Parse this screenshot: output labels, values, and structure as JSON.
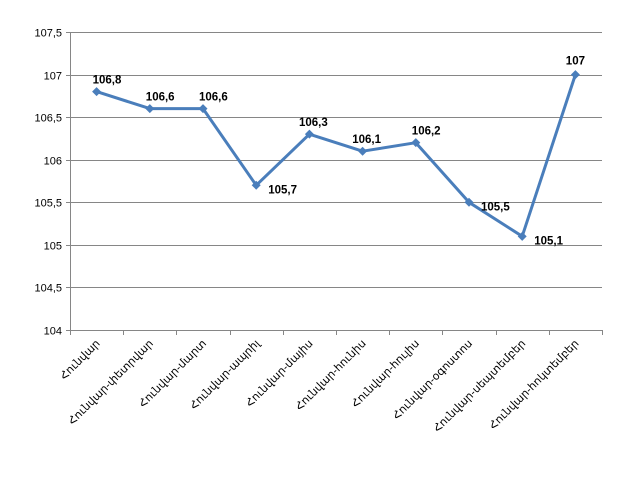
{
  "chart_data": {
    "type": "line",
    "title": "",
    "xlabel": "",
    "ylabel": "",
    "categories": [
      "Հունվար",
      "Հունվար-փետրվար",
      "Հունվար-մարտ",
      "Հունվար-ապրիլ",
      "Հունվար-մայիս",
      "Հունվար-հունիս",
      "Հունվար-հուլիս",
      "Հունվար-օգոստոս",
      "Հունվար-սեպտեմբեր",
      "Հունվար-հոկտեմբեր"
    ],
    "values": [
      106.8,
      106.6,
      106.6,
      105.7,
      106.3,
      106.1,
      106.2,
      105.5,
      105.1,
      107
    ],
    "data_labels": [
      "106,8",
      "106,6",
      "106,6",
      "105,7",
      "106,3",
      "106,1",
      "106,2",
      "105,5",
      "105,1",
      "107"
    ],
    "ylim": [
      104,
      107.5
    ],
    "yticks": [
      104,
      104.5,
      105,
      105.5,
      106,
      106.5,
      107,
      107.5
    ],
    "ytick_labels": [
      "104",
      "104,5",
      "105",
      "105,5",
      "106",
      "106,5",
      "107",
      "107,5"
    ],
    "grid": true,
    "legend": "none",
    "series_color": "#4a7ebb",
    "grid_color": "#868686",
    "marker": "diamond"
  }
}
